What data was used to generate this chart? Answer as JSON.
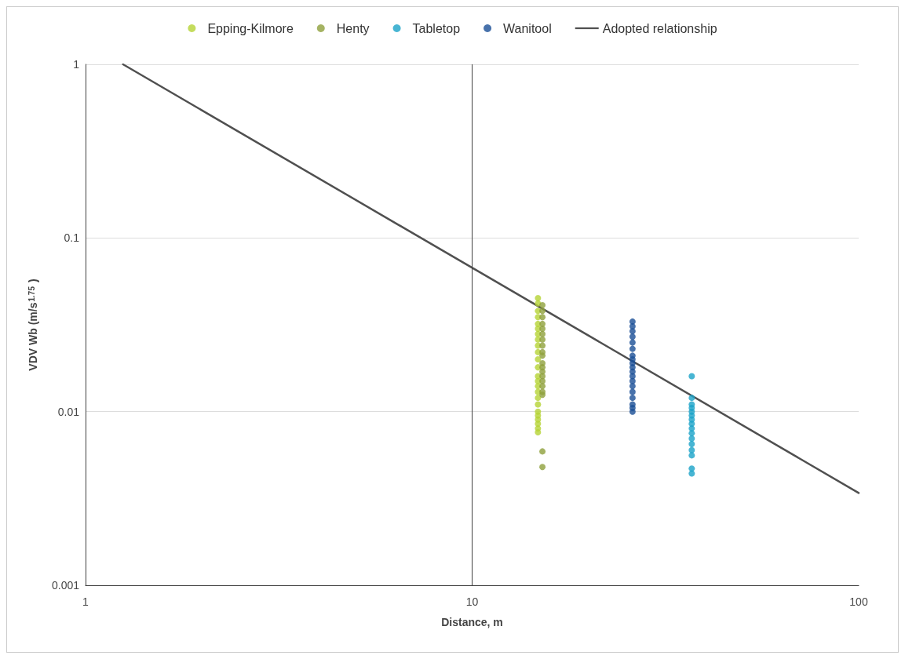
{
  "chart_data": {
    "type": "scatter",
    "xlabel": "Distance, m",
    "ylabel": "VDV Wb (m/s$^{1.75}$)",
    "log": "xy",
    "xlim": [
      1,
      100
    ],
    "xticks": [
      1,
      10,
      100
    ],
    "ylim": [
      0.001,
      1
    ],
    "yticks": [
      0.001,
      0.01,
      0.1,
      1
    ],
    "grid": "y",
    "legend": "top",
    "marker": "circle",
    "ref_lines": [
      {
        "axis": "x",
        "value": 10,
        "color": "#404040"
      }
    ],
    "series": [
      {
        "name": "Epping-Kilmore",
        "color": "#b5d334",
        "x": [
          14.8,
          14.8,
          14.8,
          14.8,
          14.8,
          14.8,
          14.8,
          14.8,
          14.8,
          14.8,
          14.8,
          14.8,
          14.8,
          14.8,
          14.8,
          14.8,
          14.8,
          14.8,
          14.8,
          14.8,
          14.8,
          14.8,
          14.8,
          14.8
        ],
        "values": [
          0.045,
          0.042,
          0.038,
          0.035,
          0.032,
          0.03,
          0.028,
          0.026,
          0.024,
          0.022,
          0.02,
          0.018,
          0.016,
          0.015,
          0.014,
          0.013,
          0.012,
          0.011,
          0.01,
          0.0095,
          0.009,
          0.0085,
          0.008,
          0.0076
        ]
      },
      {
        "name": "Henty",
        "color": "#8ea03c",
        "x": [
          15.2,
          15.2,
          15.2,
          15.2,
          15.2,
          15.2,
          15.2,
          15.2,
          15.2,
          15.2,
          15.2,
          15.2,
          15.2,
          15.2,
          15.2,
          15.2,
          15.2,
          15.2,
          15.2,
          15.2
        ],
        "values": [
          0.041,
          0.038,
          0.035,
          0.032,
          0.03,
          0.028,
          0.026,
          0.024,
          0.022,
          0.021,
          0.019,
          0.018,
          0.017,
          0.016,
          0.015,
          0.014,
          0.013,
          0.0125,
          0.0059,
          0.0048
        ]
      },
      {
        "name": "Tabletop",
        "color": "#1aa3c8",
        "x": [
          37,
          37,
          37,
          37,
          37,
          37,
          37,
          37,
          37,
          37,
          37,
          37,
          37,
          37,
          37,
          37
        ],
        "values": [
          0.016,
          0.012,
          0.011,
          0.0105,
          0.01,
          0.0095,
          0.009,
          0.0085,
          0.008,
          0.0075,
          0.007,
          0.0065,
          0.006,
          0.0056,
          0.0047,
          0.0044
        ]
      },
      {
        "name": "Wanitool",
        "color": "#1a4f96",
        "x": [
          26,
          26,
          26,
          26,
          26,
          26,
          26,
          26,
          26,
          26,
          26,
          26,
          26,
          26,
          26,
          26,
          26,
          26,
          26
        ],
        "values": [
          0.033,
          0.031,
          0.029,
          0.027,
          0.025,
          0.023,
          0.021,
          0.02,
          0.019,
          0.018,
          0.017,
          0.016,
          0.015,
          0.014,
          0.013,
          0.012,
          0.011,
          0.0105,
          0.01
        ]
      },
      {
        "name": "Adopted relationship",
        "type": "line",
        "color": "#505050",
        "marker": "none",
        "line_style": "solid",
        "x": [
          1.25,
          100
        ],
        "values": [
          1,
          0.0034
        ]
      }
    ]
  }
}
